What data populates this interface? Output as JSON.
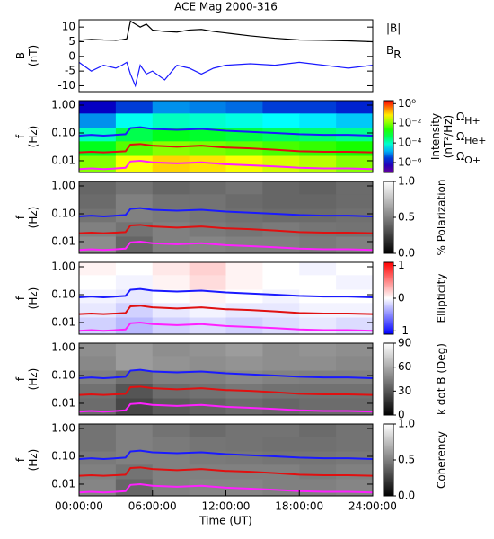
{
  "chart_data": [
    {
      "type": "line",
      "title": "ACE Mag 2000-316",
      "ylabel": "B (nT)",
      "xlim": [
        0,
        24
      ],
      "ylim": [
        -12,
        12.5
      ],
      "yticks": [
        -10,
        -5,
        0,
        5,
        10
      ],
      "x": [
        0,
        1,
        2,
        3,
        3.5,
        3.9,
        4.2,
        4.6,
        5,
        5.5,
        6,
        7,
        8,
        9,
        10,
        11,
        12,
        14,
        16,
        18,
        20,
        22,
        24
      ],
      "series": [
        {
          "name": "|B|",
          "color": "#000000",
          "values": [
            5.5,
            5.8,
            5.6,
            5.5,
            5.7,
            6,
            12,
            11,
            10,
            11,
            9,
            8.5,
            8.3,
            9,
            9.2,
            8.5,
            8,
            7,
            6.2,
            5.6,
            5.5,
            5.3,
            5
          ]
        },
        {
          "name": "B_R",
          "color": "#1a1aff",
          "values": [
            -2,
            -5,
            -3,
            -4,
            -3,
            -2,
            -6,
            -10,
            -3,
            -6,
            -5,
            -8,
            -3,
            -4,
            -6,
            -4,
            -3,
            -2.5,
            -3,
            -2,
            -3,
            -4,
            -3
          ]
        }
      ]
    },
    {
      "type": "spectrogram",
      "ylabel": "f (Hz)",
      "log_y": true,
      "xlim": [
        0,
        24
      ],
      "ylim": [
        0.0038,
        1.45
      ],
      "yticks": [
        {
          "value": 1,
          "label": "1.00"
        },
        {
          "value": 0.1,
          "label": "0.10"
        },
        {
          "value": 0.01,
          "label": "0.01"
        }
      ],
      "colormap": "rainbow",
      "zlog": true,
      "zlim": [
        1e-07,
        2
      ],
      "zlabel": "Intensity (nT²/Hz)",
      "zticks": [
        {
          "value": 1,
          "label": "10⁰"
        },
        {
          "value": 0.01,
          "label": "10⁻²"
        },
        {
          "value": 0.0001,
          "label": "10⁻⁴"
        },
        {
          "value": 1e-06,
          "label": "10⁻⁶"
        }
      ],
      "time_bins": [
        0,
        3,
        6,
        9,
        12,
        15,
        18,
        21,
        24
      ],
      "freq_bins": [
        1.45,
        0.5,
        0.15,
        0.05,
        0.015,
        0.0038
      ],
      "z": [
        [
          1e-06,
          3e-06,
          1e-05,
          8e-06,
          6e-06,
          3e-06,
          3e-06,
          2e-06
        ],
        [
          1e-05,
          5e-05,
          0.0001,
          8e-05,
          6e-05,
          4e-05,
          3e-05,
          2e-05
        ],
        [
          0.0001,
          0.0005,
          0.001,
          0.0008,
          0.0006,
          0.0004,
          0.0003,
          0.0002
        ],
        [
          0.001,
          0.005,
          0.01,
          0.008,
          0.006,
          0.004,
          0.003,
          0.002
        ],
        [
          0.01,
          0.05,
          0.1,
          0.08,
          0.05,
          0.03,
          0.02,
          0.01
        ]
      ],
      "x": [
        0,
        1,
        2,
        3,
        3.8,
        4.2,
        5,
        6,
        8,
        10,
        12,
        14,
        16,
        18,
        20,
        22,
        24
      ],
      "series": [
        {
          "name": "Ω_H+",
          "color": "#1a1aff",
          "values": [
            0.08,
            0.085,
            0.08,
            0.085,
            0.09,
            0.15,
            0.16,
            0.14,
            0.13,
            0.14,
            0.12,
            0.11,
            0.1,
            0.09,
            0.085,
            0.085,
            0.08
          ]
        },
        {
          "name": "Ω_He+",
          "color": "#e01010",
          "values": [
            0.02,
            0.021,
            0.02,
            0.021,
            0.022,
            0.038,
            0.04,
            0.035,
            0.032,
            0.035,
            0.03,
            0.028,
            0.025,
            0.022,
            0.021,
            0.021,
            0.02
          ]
        },
        {
          "name": "Ω_O+",
          "color": "#ff20ff",
          "values": [
            0.005,
            0.0053,
            0.005,
            0.0053,
            0.0056,
            0.0094,
            0.01,
            0.0088,
            0.0081,
            0.0088,
            0.0075,
            0.0069,
            0.0063,
            0.0056,
            0.0053,
            0.0053,
            0.005
          ]
        }
      ]
    },
    {
      "type": "spectrogram",
      "ylabel": "f (Hz)",
      "log_y": true,
      "xlim": [
        0,
        24
      ],
      "ylim": [
        0.0038,
        1.45
      ],
      "yticks": [
        {
          "value": 1,
          "label": "1.00"
        },
        {
          "value": 0.1,
          "label": "0.10"
        },
        {
          "value": 0.01,
          "label": "0.01"
        }
      ],
      "colormap": "gray",
      "zlim": [
        0,
        1
      ],
      "zlabel": "% Polarization",
      "zticks": [
        {
          "value": 0,
          "label": "0.0"
        },
        {
          "value": 0.5,
          "label": "0.5"
        },
        {
          "value": 1,
          "label": "1.0"
        }
      ],
      "time_bins": [
        0,
        3,
        6,
        9,
        12,
        15,
        18,
        21,
        24
      ],
      "freq_bins": [
        1.45,
        0.5,
        0.15,
        0.05,
        0.015,
        0.0038
      ],
      "z": [
        [
          0.4,
          0.45,
          0.4,
          0.42,
          0.45,
          0.4,
          0.38,
          0.42
        ],
        [
          0.42,
          0.5,
          0.45,
          0.45,
          0.42,
          0.4,
          0.4,
          0.42
        ],
        [
          0.45,
          0.5,
          0.48,
          0.46,
          0.44,
          0.42,
          0.42,
          0.44
        ],
        [
          0.5,
          0.45,
          0.5,
          0.48,
          0.46,
          0.48,
          0.46,
          0.45
        ],
        [
          0.55,
          0.4,
          0.5,
          0.52,
          0.5,
          0.5,
          0.48,
          0.5
        ]
      ],
      "x": [
        0,
        1,
        2,
        3,
        3.8,
        4.2,
        5,
        6,
        8,
        10,
        12,
        14,
        16,
        18,
        20,
        22,
        24
      ],
      "series": [
        {
          "color": "#1a1aff",
          "values": [
            0.08,
            0.085,
            0.08,
            0.085,
            0.09,
            0.15,
            0.16,
            0.14,
            0.13,
            0.14,
            0.12,
            0.11,
            0.1,
            0.09,
            0.085,
            0.085,
            0.08
          ]
        },
        {
          "color": "#e01010",
          "values": [
            0.02,
            0.021,
            0.02,
            0.021,
            0.022,
            0.038,
            0.04,
            0.035,
            0.032,
            0.035,
            0.03,
            0.028,
            0.025,
            0.022,
            0.021,
            0.021,
            0.02
          ]
        },
        {
          "color": "#ff20ff",
          "values": [
            0.005,
            0.0053,
            0.005,
            0.0053,
            0.0056,
            0.0094,
            0.01,
            0.0088,
            0.0081,
            0.0088,
            0.0075,
            0.0069,
            0.0063,
            0.0056,
            0.0053,
            0.0053,
            0.005
          ]
        }
      ]
    },
    {
      "type": "spectrogram",
      "ylabel": "f (Hz)",
      "log_y": true,
      "xlim": [
        0,
        24
      ],
      "ylim": [
        0.0038,
        1.45
      ],
      "yticks": [
        {
          "value": 1,
          "label": "1.00"
        },
        {
          "value": 0.1,
          "label": "0.10"
        },
        {
          "value": 0.01,
          "label": "0.01"
        }
      ],
      "colormap": "bwr",
      "zlim": [
        -1.1,
        1.1
      ],
      "zlabel": "Ellipticity",
      "zticks": [
        -1,
        0,
        1
      ],
      "time_bins": [
        0,
        3,
        6,
        9,
        12,
        15,
        18,
        21,
        24
      ],
      "freq_bins": [
        1.45,
        0.5,
        0.15,
        0.05,
        0.015,
        0.0038
      ],
      "z": [
        [
          0.05,
          0,
          0.1,
          0.2,
          0.05,
          0,
          -0.05,
          0
        ],
        [
          0,
          -0.05,
          0.05,
          0.15,
          0.05,
          0,
          0,
          -0.05
        ],
        [
          -0.05,
          -0.1,
          0,
          0.05,
          0,
          -0.05,
          0,
          0
        ],
        [
          -0.1,
          -0.2,
          -0.1,
          -0.05,
          -0.1,
          -0.1,
          -0.05,
          -0.05
        ],
        [
          -0.2,
          -0.3,
          -0.2,
          -0.15,
          -0.2,
          -0.15,
          -0.1,
          -0.15
        ]
      ],
      "x": [
        0,
        1,
        2,
        3,
        3.8,
        4.2,
        5,
        6,
        8,
        10,
        12,
        14,
        16,
        18,
        20,
        22,
        24
      ],
      "series": [
        {
          "color": "#1a1aff",
          "values": [
            0.08,
            0.085,
            0.08,
            0.085,
            0.09,
            0.15,
            0.16,
            0.14,
            0.13,
            0.14,
            0.12,
            0.11,
            0.1,
            0.09,
            0.085,
            0.085,
            0.08
          ]
        },
        {
          "color": "#e01010",
          "values": [
            0.02,
            0.021,
            0.02,
            0.021,
            0.022,
            0.038,
            0.04,
            0.035,
            0.032,
            0.035,
            0.03,
            0.028,
            0.025,
            0.022,
            0.021,
            0.021,
            0.02
          ]
        },
        {
          "color": "#ff20ff",
          "values": [
            0.005,
            0.0053,
            0.005,
            0.0053,
            0.0056,
            0.0094,
            0.01,
            0.0088,
            0.0081,
            0.0088,
            0.0075,
            0.0069,
            0.0063,
            0.0056,
            0.0053,
            0.0053,
            0.005
          ]
        }
      ]
    },
    {
      "type": "spectrogram",
      "ylabel": "f (Hz)",
      "log_y": true,
      "xlim": [
        0,
        24
      ],
      "ylim": [
        0.0038,
        1.45
      ],
      "yticks": [
        {
          "value": 1,
          "label": "1.00"
        },
        {
          "value": 0.1,
          "label": "0.10"
        },
        {
          "value": 0.01,
          "label": "0.01"
        }
      ],
      "colormap": "gray",
      "zlim": [
        0,
        90
      ],
      "zlabel": "k dot B (Deg)",
      "zticks": [
        0,
        30,
        60,
        90
      ],
      "time_bins": [
        0,
        3,
        6,
        9,
        12,
        15,
        18,
        21,
        24
      ],
      "freq_bins": [
        1.45,
        0.5,
        0.15,
        0.05,
        0.015,
        0.0038
      ],
      "z": [
        [
          50,
          55,
          50,
          52,
          55,
          50,
          52,
          50
        ],
        [
          48,
          55,
          52,
          50,
          52,
          50,
          50,
          48
        ],
        [
          45,
          40,
          45,
          45,
          48,
          46,
          45,
          45
        ],
        [
          40,
          30,
          38,
          40,
          42,
          40,
          40,
          40
        ],
        [
          38,
          25,
          32,
          35,
          38,
          36,
          38,
          38
        ]
      ],
      "x": [
        0,
        1,
        2,
        3,
        3.8,
        4.2,
        5,
        6,
        8,
        10,
        12,
        14,
        16,
        18,
        20,
        22,
        24
      ],
      "series": [
        {
          "color": "#1a1aff",
          "values": [
            0.08,
            0.085,
            0.08,
            0.085,
            0.09,
            0.15,
            0.16,
            0.14,
            0.13,
            0.14,
            0.12,
            0.11,
            0.1,
            0.09,
            0.085,
            0.085,
            0.08
          ]
        },
        {
          "color": "#e01010",
          "values": [
            0.02,
            0.021,
            0.02,
            0.021,
            0.022,
            0.038,
            0.04,
            0.035,
            0.032,
            0.035,
            0.03,
            0.028,
            0.025,
            0.022,
            0.021,
            0.021,
            0.02
          ]
        },
        {
          "color": "#ff20ff",
          "values": [
            0.005,
            0.0053,
            0.005,
            0.0053,
            0.0056,
            0.0094,
            0.01,
            0.0088,
            0.0081,
            0.0088,
            0.0075,
            0.0069,
            0.0063,
            0.0056,
            0.0053,
            0.0053,
            0.005
          ]
        }
      ]
    },
    {
      "type": "spectrogram",
      "ylabel": "f (Hz)",
      "xlabel": "Time (UT)",
      "log_y": true,
      "xlim": [
        0,
        24
      ],
      "ylim": [
        0.0038,
        1.45
      ],
      "xticks": [
        {
          "value": 0,
          "label": "00:00:00"
        },
        {
          "value": 6,
          "label": "06:00:00"
        },
        {
          "value": 12,
          "label": "12:00:00"
        },
        {
          "value": 18,
          "label": "18:00:00"
        },
        {
          "value": 24,
          "label": "24:00:00"
        }
      ],
      "yticks": [
        {
          "value": 1,
          "label": "1.00"
        },
        {
          "value": 0.1,
          "label": "0.10"
        },
        {
          "value": 0.01,
          "label": "0.01"
        }
      ],
      "colormap": "gray",
      "zlim": [
        0,
        1
      ],
      "zlabel": "Coherency",
      "zticks": [
        {
          "value": 0,
          "label": "0.0"
        },
        {
          "value": 0.5,
          "label": "0.5"
        },
        {
          "value": 1,
          "label": "1.0"
        }
      ],
      "time_bins": [
        0,
        3,
        6,
        9,
        12,
        15,
        18,
        21,
        24
      ],
      "freq_bins": [
        1.45,
        0.5,
        0.15,
        0.05,
        0.015,
        0.0038
      ],
      "z": [
        [
          0.45,
          0.5,
          0.45,
          0.42,
          0.45,
          0.45,
          0.42,
          0.45
        ],
        [
          0.45,
          0.5,
          0.48,
          0.46,
          0.45,
          0.44,
          0.44,
          0.45
        ],
        [
          0.48,
          0.5,
          0.5,
          0.48,
          0.47,
          0.46,
          0.46,
          0.47
        ],
        [
          0.5,
          0.45,
          0.5,
          0.5,
          0.5,
          0.5,
          0.48,
          0.5
        ],
        [
          0.52,
          0.4,
          0.5,
          0.52,
          0.52,
          0.5,
          0.5,
          0.52
        ]
      ],
      "x": [
        0,
        1,
        2,
        3,
        3.8,
        4.2,
        5,
        6,
        8,
        10,
        12,
        14,
        16,
        18,
        20,
        22,
        24
      ],
      "series": [
        {
          "color": "#1a1aff",
          "values": [
            0.08,
            0.085,
            0.08,
            0.085,
            0.09,
            0.15,
            0.16,
            0.14,
            0.13,
            0.14,
            0.12,
            0.11,
            0.1,
            0.09,
            0.085,
            0.085,
            0.08
          ]
        },
        {
          "color": "#e01010",
          "values": [
            0.02,
            0.021,
            0.02,
            0.021,
            0.022,
            0.038,
            0.04,
            0.035,
            0.032,
            0.035,
            0.03,
            0.028,
            0.025,
            0.022,
            0.021,
            0.021,
            0.02
          ]
        },
        {
          "color": "#ff20ff",
          "values": [
            0.005,
            0.0053,
            0.005,
            0.0053,
            0.0056,
            0.0094,
            0.01,
            0.0088,
            0.0081,
            0.0088,
            0.0075,
            0.0069,
            0.0063,
            0.0056,
            0.0053,
            0.0053,
            0.005
          ]
        }
      ]
    }
  ]
}
